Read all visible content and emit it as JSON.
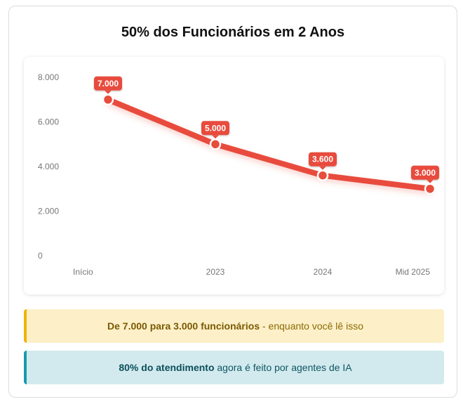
{
  "title": "50% dos Funcionários em 2 Anos",
  "chart_data": {
    "type": "line",
    "categories": [
      "Início",
      "2023",
      "2024",
      "Mid 2025"
    ],
    "values": [
      7000,
      5000,
      3600,
      3000
    ],
    "data_labels": [
      "7.000",
      "5.000",
      "3.600",
      "3.000"
    ],
    "yticks": [
      0,
      2000,
      4000,
      6000,
      8000
    ],
    "ytick_labels": [
      "0",
      "2.000",
      "4.000",
      "6.000",
      "8.000"
    ],
    "ylim": [
      0,
      8000
    ],
    "grid": false,
    "legend": "none",
    "color": "#e84c3d"
  },
  "info": {
    "yellow": {
      "bold": "De 7.000 para 3.000 funcionários",
      "rest": " - enquanto você lê isso"
    },
    "blue": {
      "bold": "80% do atendimento",
      "rest": " agora é feito por agentes de IA"
    }
  }
}
